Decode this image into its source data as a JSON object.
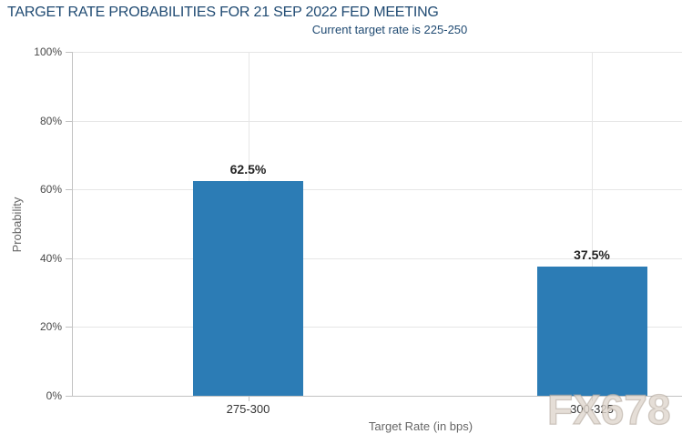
{
  "page": {
    "watermark": "FX678"
  },
  "chart_data": {
    "type": "bar",
    "title": "TARGET RATE PROBABILITIES FOR 21 SEP 2022 FED MEETING",
    "subtitle": "Current target rate is 225-250",
    "categories": [
      "275-300",
      "300-325"
    ],
    "values": [
      62.5,
      37.5
    ],
    "data_labels": [
      "62.5%",
      "37.5%"
    ],
    "xlabel": "Target Rate (in bps)",
    "ylabel": "Probability",
    "ylim": [
      0,
      100
    ],
    "ytick_labels": [
      "0%",
      "20%",
      "40%",
      "60%",
      "80%",
      "100%"
    ],
    "grid": true,
    "legend": "none"
  },
  "colors": {
    "title_text": "#1f4a72",
    "axis_title_text": "#666666",
    "tick_label_text": "#4a4a4a",
    "data_label_text": "#222222",
    "gridline": "#e6e6e6",
    "axis_line": "#c2c2c2",
    "bar": "#2c7cb5",
    "watermark_fill": "rgba(222,214,205,0.8)",
    "background": "#ffffff"
  }
}
